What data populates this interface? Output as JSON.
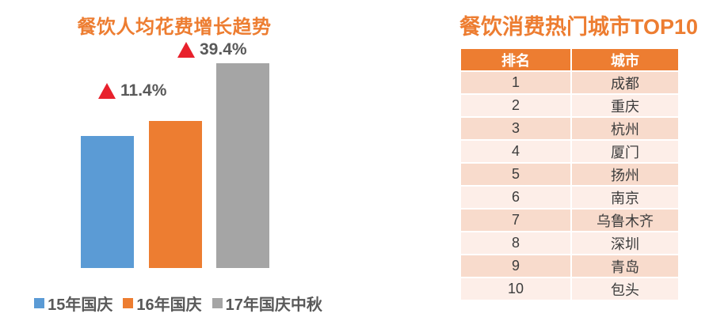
{
  "colors": {
    "accent_orange": "#ED7D31",
    "bar_blue": "#5B9BD5",
    "bar_orange": "#ED7D31",
    "bar_gray": "#A5A5A5",
    "triangle_red": "#E8212C",
    "annotation_text": "#595959",
    "table_header_bg": "#ED7D31",
    "table_row_dark": "#F8DBCC",
    "table_row_light": "#FDEEE8"
  },
  "left_chart": {
    "title": "餐饮人均花费增长趋势",
    "annotations": [
      {
        "label": "11.4%"
      },
      {
        "label": "39.4%"
      }
    ],
    "legend": [
      {
        "label": "15年国庆",
        "color": "#5B9BD5"
      },
      {
        "label": "16年国庆",
        "color": "#ED7D31"
      },
      {
        "label": "17年国庆中秋",
        "color": "#A5A5A5"
      }
    ]
  },
  "chart_data": {
    "type": "bar",
    "title": "餐饮人均花费增长趋势",
    "categories": [
      "15年国庆",
      "16年国庆",
      "17年国庆中秋"
    ],
    "values": [
      100,
      111.4,
      155.3
    ],
    "values_note": "relative per-capita spending index, 15年国庆 = 100",
    "growth_labels": [
      {
        "category": "16年国庆",
        "text": "▲ 11.4%"
      },
      {
        "category": "17年国庆中秋",
        "text": "▲ 39.4%"
      }
    ],
    "colors": [
      "#5B9BD5",
      "#ED7D31",
      "#A5A5A5"
    ],
    "legend_position": "bottom",
    "grid": false,
    "axes_hidden": true,
    "xlabel": "",
    "ylabel": ""
  },
  "table_panel": {
    "title": "餐饮消费热门城市TOP10",
    "columns": [
      "排名",
      "城市"
    ],
    "rows": [
      {
        "rank": "1",
        "city": "成都"
      },
      {
        "rank": "2",
        "city": "重庆"
      },
      {
        "rank": "3",
        "city": "杭州"
      },
      {
        "rank": "4",
        "city": "厦门"
      },
      {
        "rank": "5",
        "city": "扬州"
      },
      {
        "rank": "6",
        "city": "南京"
      },
      {
        "rank": "7",
        "city": "乌鲁木齐"
      },
      {
        "rank": "8",
        "city": "深圳"
      },
      {
        "rank": "9",
        "city": "青岛"
      },
      {
        "rank": "10",
        "city": "包头"
      }
    ]
  }
}
